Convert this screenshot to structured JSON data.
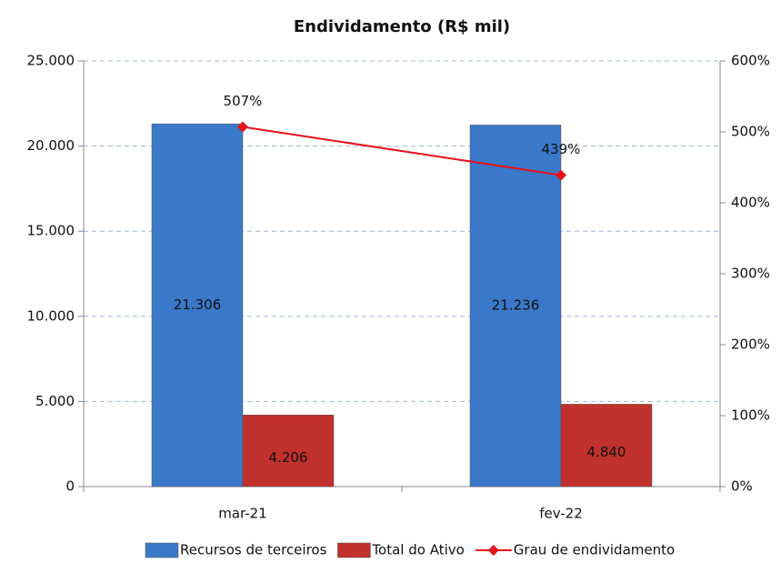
{
  "chart_data": {
    "type": "bar",
    "title": "Endividamento  (R$ mil)",
    "categories": [
      "mar-21",
      "fev-22"
    ],
    "series": [
      {
        "name": "Recursos de terceiros",
        "color": "#3a78c9",
        "values": [
          21306,
          21236
        ],
        "value_labels": [
          "21.306",
          "21.236"
        ]
      },
      {
        "name": "Total do Ativo",
        "color": "#c0302c",
        "values": [
          4206,
          4840
        ],
        "value_labels": [
          "4.206",
          "4.840"
        ]
      },
      {
        "name": "Grau de endividamento",
        "type": "line",
        "color": "#e8101a",
        "axis": "y2",
        "values": [
          507,
          439
        ],
        "value_labels": [
          "507%",
          "439%"
        ]
      }
    ],
    "ylim": [
      0,
      25000
    ],
    "yticks": [
      0,
      {
        "value": 5000,
        "label": "5.000"
      },
      {
        "value": 10000,
        "label": "10.000"
      },
      {
        "value": 15000,
        "label": "15.000"
      },
      {
        "value": 20000,
        "label": "20.000"
      },
      {
        "value": 25000,
        "label": "25.000"
      }
    ],
    "y2lim": [
      0,
      600
    ],
    "y2ticks": [
      {
        "value": 0,
        "label": "0%"
      },
      {
        "value": 100,
        "label": "100%"
      },
      {
        "value": 200,
        "label": "200%"
      },
      {
        "value": 300,
        "label": "300%"
      },
      {
        "value": 400,
        "label": "400%"
      },
      {
        "value": 500,
        "label": "500%"
      },
      {
        "value": 600,
        "label": "600%"
      }
    ],
    "grid": true,
    "legend": "bottom"
  }
}
